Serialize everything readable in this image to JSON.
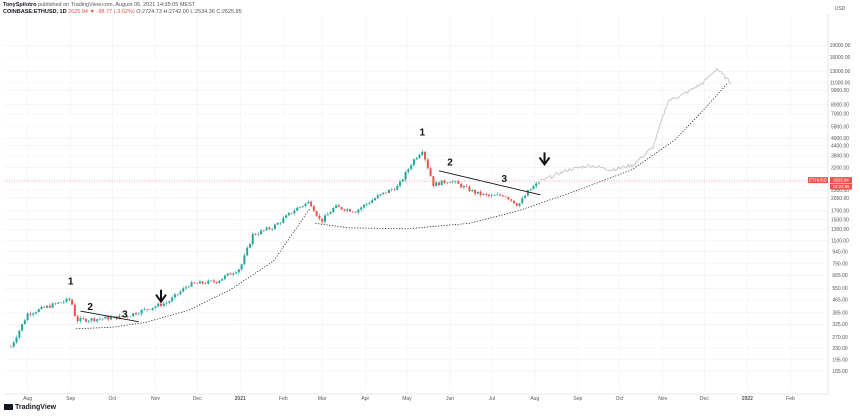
{
  "header": {
    "author": "TonySpilotro",
    "published": "published on TradingView.com, August 05, 2021 14:35:05 MEST",
    "symbol": "COINBASE:ETHUSD, 1D",
    "price": "2625.94",
    "change": "▼ -98.77 (-3.62%)",
    "ohlc": "O:2724.73 H:2742.00 L:2534.36 C:2625.85"
  },
  "footer": {
    "brand": "TradingView"
  },
  "colors": {
    "up": "#26a69a",
    "down": "#ef5350",
    "projection": "#c8c8c8",
    "badge": "#ef5350",
    "grid": "#eef1f5",
    "axis_text": "#555555"
  },
  "chart_data": {
    "type": "candlestick",
    "scale": "log",
    "ylim": [
      125,
      30000
    ],
    "y_axis_label": "USD",
    "y_ticks": [
      19000,
      16000,
      13000,
      11000,
      9900,
      8000,
      7000,
      5800,
      4900,
      4400,
      3800,
      3200,
      2700,
      2300,
      2050,
      1700,
      1500,
      1300,
      1100,
      940,
      790,
      665,
      550,
      465,
      385,
      325,
      270,
      230,
      195,
      165
    ],
    "x_ticks": [
      "Aug",
      "Sep",
      "Oct",
      "Nov",
      "Dec",
      "2021",
      "Feb",
      "Mar",
      "Apr",
      "May",
      "Jun",
      "Jul",
      "Aug",
      "Sep",
      "Oct",
      "Nov",
      "Dec",
      "2022",
      "Feb"
    ],
    "current_price": 2625.94,
    "price_badges": [
      "ETHUSD",
      "2625.94",
      "19:24:55"
    ],
    "trajectory": [
      {
        "t": "2020-07-20",
        "price": 235
      },
      {
        "t": "2020-08-01",
        "price": 380
      },
      {
        "t": "2020-08-15",
        "price": 420
      },
      {
        "t": "2020-09-01",
        "price": 470
      },
      {
        "t": "2020-09-05",
        "price": 345
      },
      {
        "t": "2020-09-25",
        "price": 355
      },
      {
        "t": "2020-10-10",
        "price": 365
      },
      {
        "t": "2020-10-25",
        "price": 405
      },
      {
        "t": "2020-11-10",
        "price": 450
      },
      {
        "t": "2020-11-25",
        "price": 580
      },
      {
        "t": "2020-12-15",
        "price": 610
      },
      {
        "t": "2021-01-01",
        "price": 740
      },
      {
        "t": "2021-01-10",
        "price": 1200
      },
      {
        "t": "2021-01-25",
        "price": 1350
      },
      {
        "t": "2021-02-10",
        "price": 1750
      },
      {
        "t": "2021-02-20",
        "price": 1950
      },
      {
        "t": "2021-02-28",
        "price": 1450
      },
      {
        "t": "2021-03-10",
        "price": 1800
      },
      {
        "t": "2021-03-25",
        "price": 1700
      },
      {
        "t": "2021-04-10",
        "price": 2100
      },
      {
        "t": "2021-04-25",
        "price": 2450
      },
      {
        "t": "2021-05-05",
        "price": 3500
      },
      {
        "t": "2021-05-12",
        "price": 4150
      },
      {
        "t": "2021-05-20",
        "price": 2500
      },
      {
        "t": "2021-06-01",
        "price": 2650
      },
      {
        "t": "2021-06-20",
        "price": 2200
      },
      {
        "t": "2021-06-30",
        "price": 2100
      },
      {
        "t": "2021-07-10",
        "price": 2150
      },
      {
        "t": "2021-07-20",
        "price": 1850
      },
      {
        "t": "2021-07-28",
        "price": 2300
      },
      {
        "t": "2021-08-05",
        "price": 2625
      }
    ],
    "projection": [
      {
        "t": "2021-08-05",
        "price": 2625
      },
      {
        "t": "2021-08-25",
        "price": 3100
      },
      {
        "t": "2021-09-10",
        "price": 3300
      },
      {
        "t": "2021-09-25",
        "price": 3100
      },
      {
        "t": "2021-10-10",
        "price": 3300
      },
      {
        "t": "2021-10-25",
        "price": 4300
      },
      {
        "t": "2021-11-05",
        "price": 8500
      },
      {
        "t": "2021-11-15",
        "price": 9200
      },
      {
        "t": "2021-11-30",
        "price": 11000
      },
      {
        "t": "2021-12-10",
        "price": 13500
      },
      {
        "t": "2021-12-20",
        "price": 11000
      }
    ],
    "annotations": [
      {
        "text": "1",
        "t": "2020-09-01",
        "price": 580
      },
      {
        "text": "2",
        "t": "2020-09-15",
        "price": 400
      },
      {
        "text": "3",
        "t": "2020-10-10",
        "price": 360
      },
      {
        "text": "1",
        "t": "2021-05-12",
        "price": 5100
      },
      {
        "text": "2",
        "t": "2021-06-01",
        "price": 3300
      },
      {
        "text": "3",
        "t": "2021-07-10",
        "price": 2600
      }
    ]
  }
}
